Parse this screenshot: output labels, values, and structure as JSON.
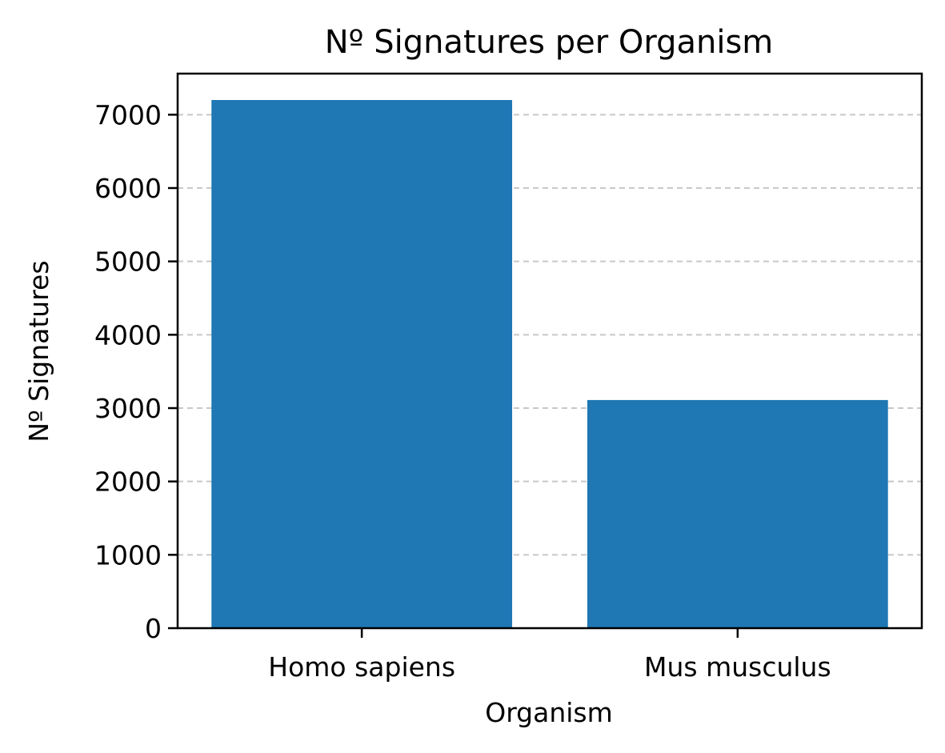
{
  "chart_data": {
    "type": "bar",
    "title": "Nº Signatures per Organism",
    "xlabel": "Organism",
    "ylabel": "Nº Signatures",
    "categories": [
      "Homo sapiens",
      "Mus musculus"
    ],
    "values": [
      7200,
      3110
    ],
    "ylim": [
      0,
      7560
    ],
    "yticks": [
      0,
      1000,
      2000,
      3000,
      4000,
      5000,
      6000,
      7000
    ],
    "grid": "y-dashed",
    "bar_color": "#1f77b4",
    "grid_color": "#c8c8c8"
  }
}
